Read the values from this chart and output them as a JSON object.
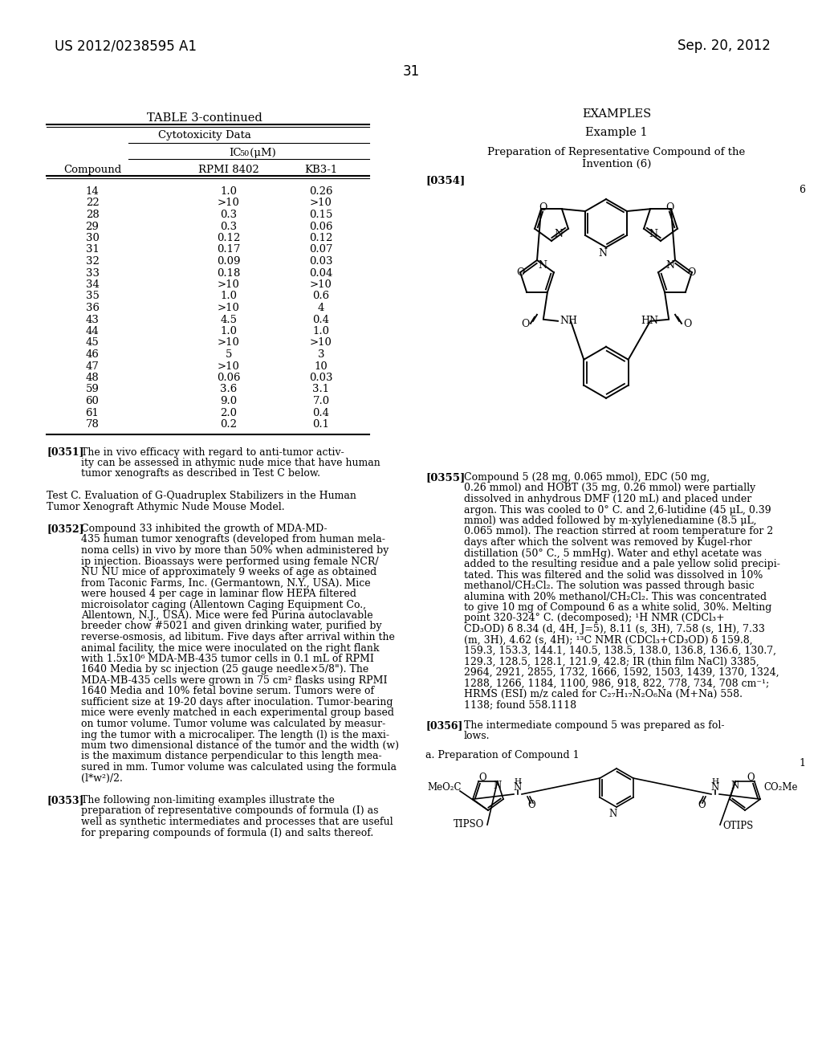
{
  "page_number": "31",
  "left_header": "US 2012/0238595 A1",
  "right_header": "Sep. 20, 2012",
  "table_title": "TABLE 3-continued",
  "table_subtitle": "Cytotoxicity Data",
  "col_headers": [
    "Compound",
    "RPMI 8402",
    "KB3-1"
  ],
  "table_data": [
    [
      "14",
      "1.0",
      "0.26"
    ],
    [
      "22",
      ">10",
      ">10"
    ],
    [
      "28",
      "0.3",
      "0.15"
    ],
    [
      "29",
      "0.3",
      "0.06"
    ],
    [
      "30",
      "0.12",
      "0.12"
    ],
    [
      "31",
      "0.17",
      "0.07"
    ],
    [
      "32",
      "0.09",
      "0.03"
    ],
    [
      "33",
      "0.18",
      "0.04"
    ],
    [
      "34",
      ">10",
      ">10"
    ],
    [
      "35",
      "1.0",
      "0.6"
    ],
    [
      "36",
      ">10",
      "4"
    ],
    [
      "43",
      "4.5",
      "0.4"
    ],
    [
      "44",
      "1.0",
      "1.0"
    ],
    [
      "45",
      ">10",
      ">10"
    ],
    [
      "46",
      "5",
      "3"
    ],
    [
      "47",
      ">10",
      "10"
    ],
    [
      "48",
      "0.06",
      "0.03"
    ],
    [
      "59",
      "3.6",
      "3.1"
    ],
    [
      "60",
      "9.0",
      "7.0"
    ],
    [
      "61",
      "2.0",
      "0.4"
    ],
    [
      "78",
      "0.2",
      "0.1"
    ]
  ],
  "background_color": "#ffffff",
  "text_color": "#000000"
}
